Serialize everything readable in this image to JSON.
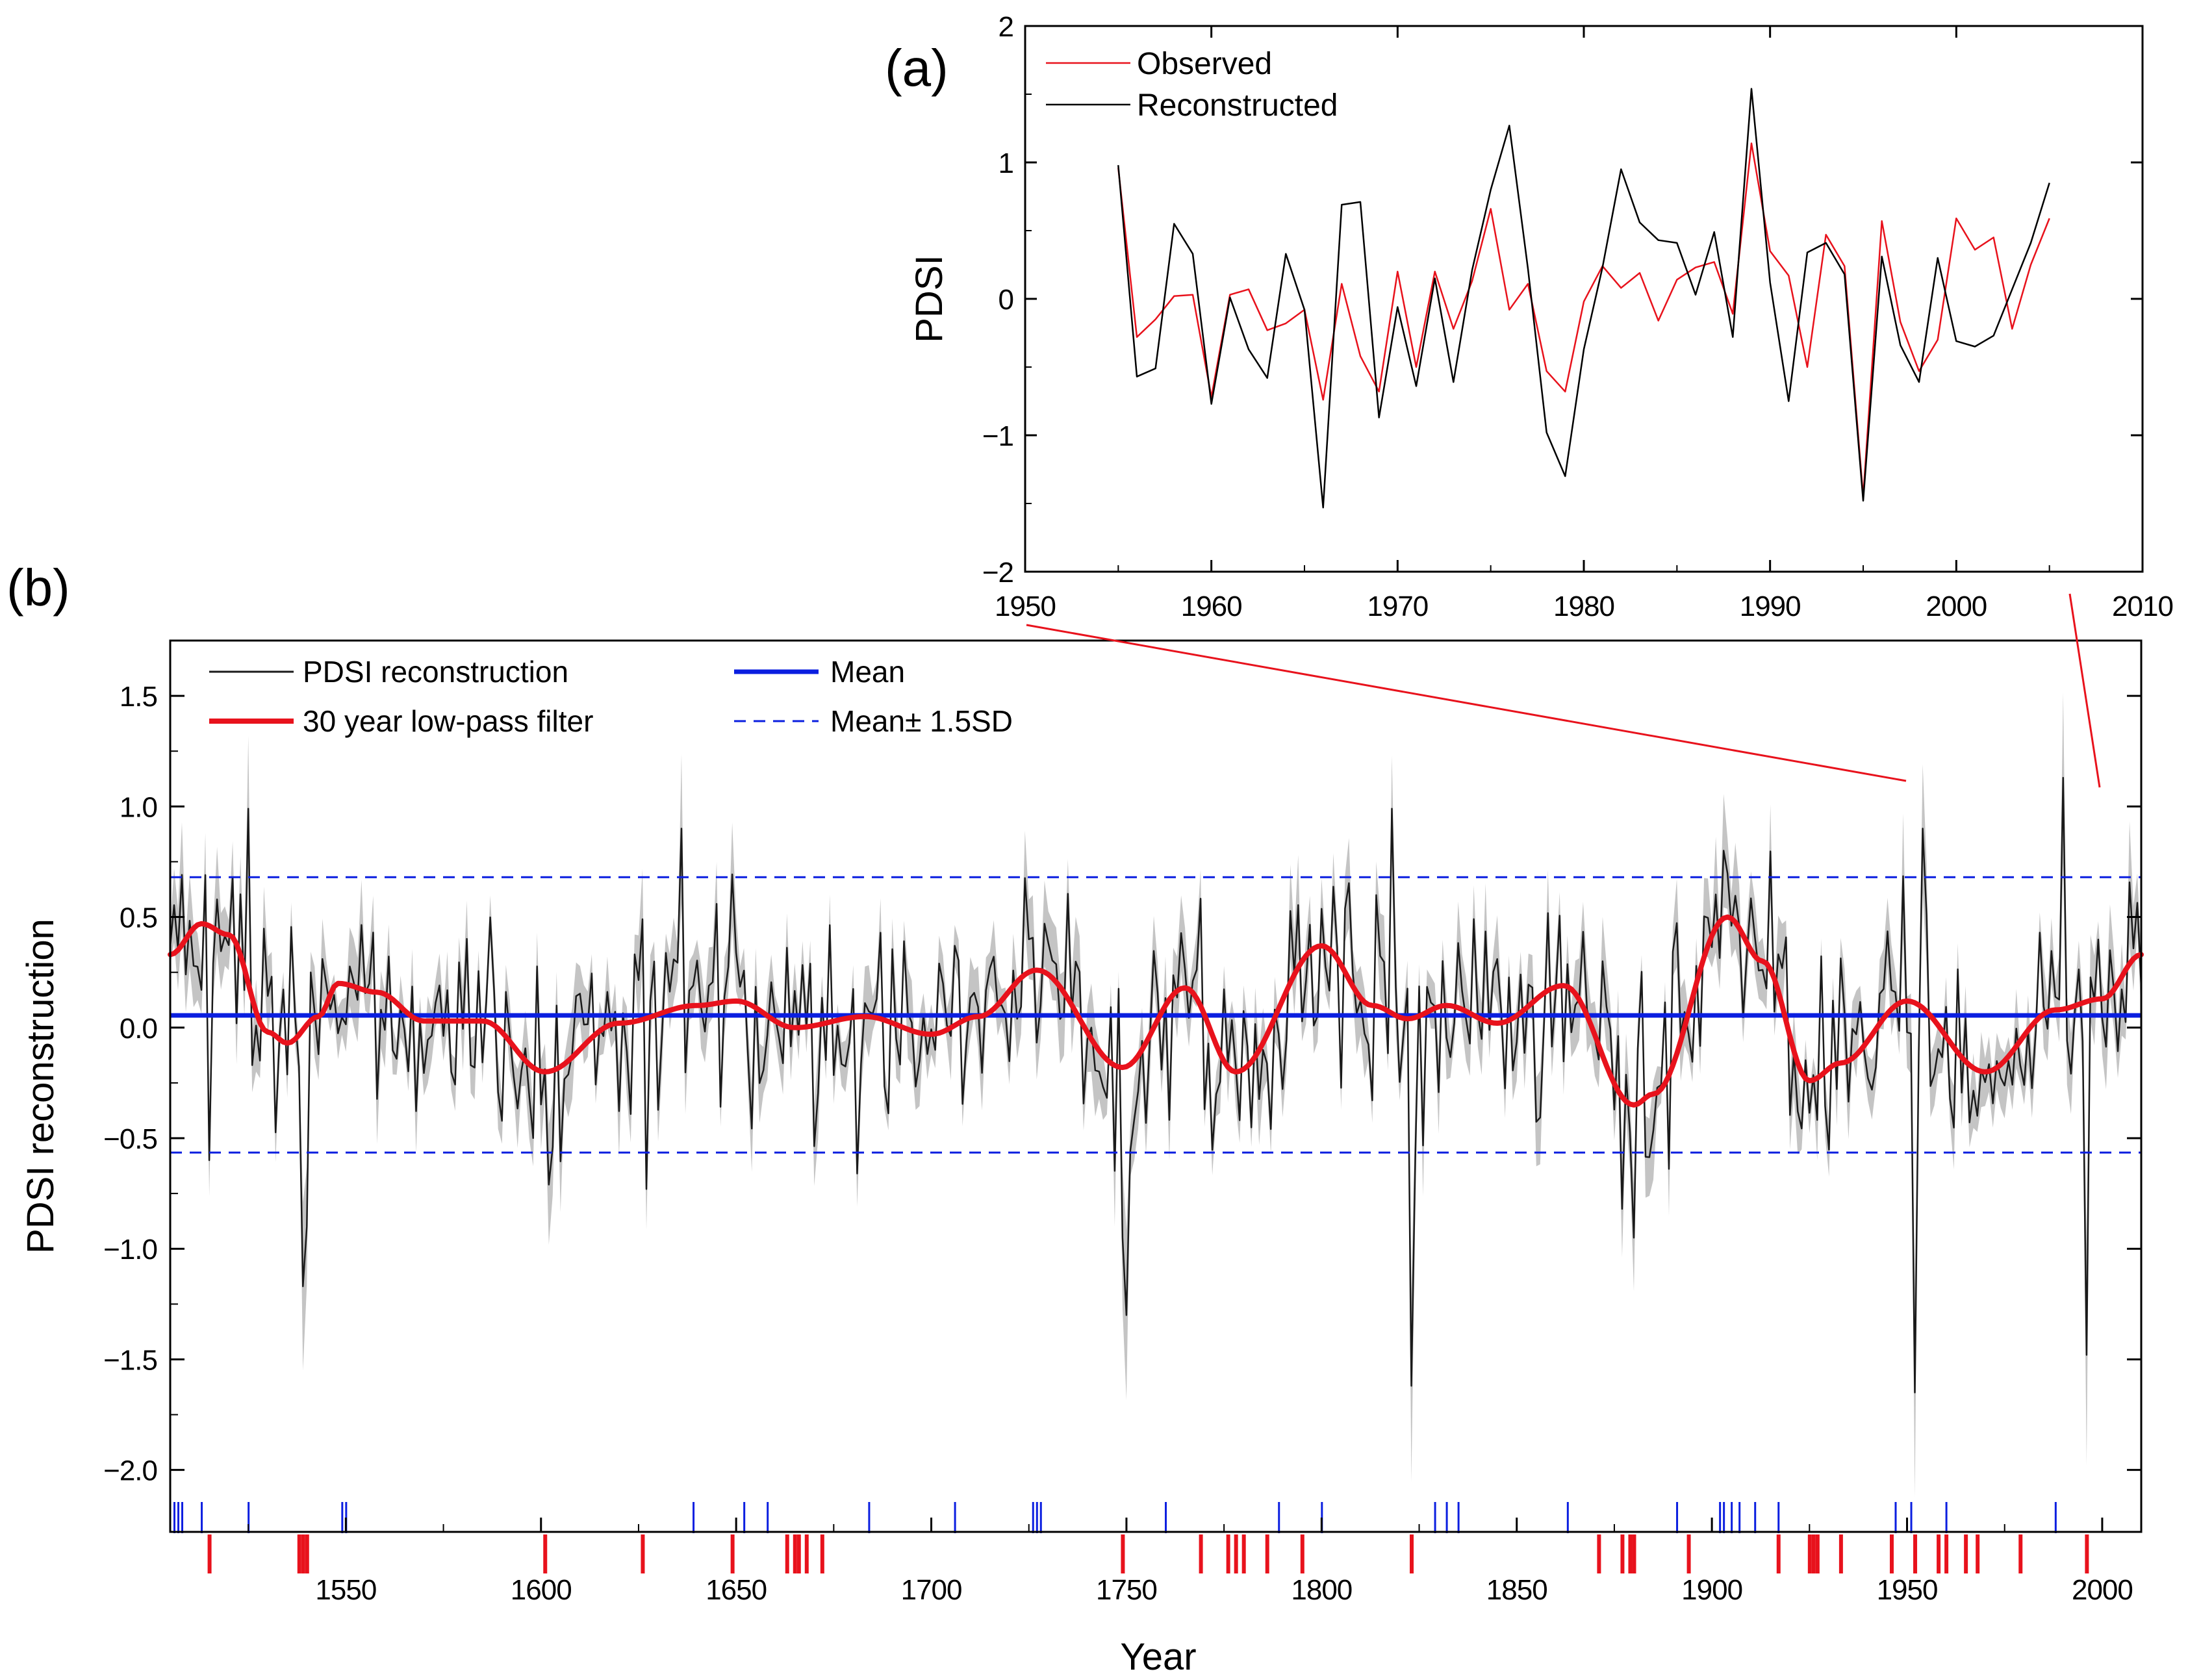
{
  "colors": {
    "reconstruction": "#1a1a1a",
    "uncertainty": "#c4c4c4",
    "lowpass": "#e8121c",
    "mean": "#0a1ee0",
    "observed": "#e8121c",
    "axis": "#000000"
  },
  "panel_a": {
    "label": "(a)",
    "ylabel": "PDSI",
    "legend": [
      {
        "label": "Observed",
        "color": "#e8121c"
      },
      {
        "label": "Reconstructed",
        "color": "#000000"
      }
    ]
  },
  "panel_b": {
    "label": "(b)",
    "ylabel": "PDSI reconstruction",
    "xlabel": "Year",
    "legend": [
      {
        "label": "PDSI reconstruction"
      },
      {
        "label": "30 year low-pass filter"
      },
      {
        "label": "Mean"
      },
      {
        "label": "Mean± 1.5SD"
      }
    ]
  },
  "chart_data": [
    {
      "type": "line",
      "panel": "a",
      "title": "",
      "xlabel": "",
      "ylabel": "PDSI",
      "xlim": [
        1950,
        2010
      ],
      "ylim": [
        -2,
        2
      ],
      "xticks": [
        1950,
        1960,
        1970,
        1980,
        1990,
        2000,
        2010
      ],
      "yticks": [
        {
          "value": 2,
          "label": "2"
        },
        {
          "value": 1,
          "label": "1"
        },
        {
          "value": 0,
          "label": "0"
        },
        {
          "value": -1,
          "label": "−1"
        },
        {
          "value": -2,
          "label": "−2"
        }
      ],
      "x": [
        1955,
        1956,
        1957,
        1958,
        1959,
        1960,
        1961,
        1962,
        1963,
        1964,
        1965,
        1966,
        1967,
        1968,
        1969,
        1970,
        1971,
        1972,
        1973,
        1974,
        1975,
        1976,
        1977,
        1978,
        1979,
        1980,
        1981,
        1982,
        1983,
        1984,
        1985,
        1986,
        1987,
        1988,
        1989,
        1990,
        1991,
        1992,
        1993,
        1994,
        1995,
        1996,
        1997,
        1998,
        1999,
        2000,
        2001,
        2002,
        2003,
        2004,
        2005
      ],
      "series": [
        {
          "name": "Observed",
          "values": [
            0.96,
            -0.28,
            -0.15,
            0.02,
            0.03,
            -0.72,
            0.03,
            0.07,
            -0.23,
            -0.18,
            -0.08,
            -0.74,
            0.11,
            -0.42,
            -0.68,
            0.2,
            -0.5,
            0.2,
            -0.22,
            0.13,
            0.66,
            -0.08,
            0.11,
            -0.53,
            -0.68,
            -0.02,
            0.24,
            0.08,
            0.19,
            -0.16,
            0.14,
            0.23,
            0.27,
            -0.11,
            1.14,
            0.35,
            0.17,
            -0.5,
            0.47,
            0.24,
            -1.45,
            0.57,
            -0.17,
            -0.53,
            -0.3,
            0.59,
            0.36,
            0.45,
            -0.22,
            0.25,
            0.59
          ]
        },
        {
          "name": "Reconstructed",
          "values": [
            0.98,
            -0.57,
            -0.51,
            0.55,
            0.33,
            -0.77,
            0.01,
            -0.37,
            -0.58,
            0.33,
            -0.08,
            -1.53,
            0.69,
            0.71,
            -0.87,
            -0.06,
            -0.64,
            0.15,
            -0.61,
            0.21,
            0.8,
            1.27,
            0.22,
            -0.98,
            -1.3,
            -0.37,
            0.23,
            0.95,
            0.56,
            0.43,
            0.41,
            0.03,
            0.49,
            -0.28,
            1.54,
            0.12,
            -0.75,
            0.34,
            0.41,
            0.18,
            -1.48,
            0.31,
            -0.34,
            -0.61,
            0.3,
            -0.31,
            -0.35,
            -0.27,
            0.07,
            0.41,
            0.85
          ]
        }
      ]
    },
    {
      "type": "line",
      "panel": "b",
      "title": "",
      "xlabel": "Year",
      "ylabel": "PDSI reconstruction",
      "xlim": [
        1505,
        2010
      ],
      "ylim": [
        -2.28,
        1.75
      ],
      "xticks": [
        1550,
        1600,
        1650,
        1700,
        1750,
        1800,
        1850,
        1900,
        1950,
        2000
      ],
      "yticks": [
        {
          "value": 1.5,
          "label": "1.5"
        },
        {
          "value": 1.0,
          "label": "1.0"
        },
        {
          "value": 0.5,
          "label": "0.5"
        },
        {
          "value": 0.0,
          "label": "0.0"
        },
        {
          "value": -0.5,
          "label": "−0.5"
        },
        {
          "value": -1.0,
          "label": "−1.0"
        },
        {
          "value": -1.5,
          "label": "−1.5"
        },
        {
          "value": -2.0,
          "label": "−2.0"
        }
      ],
      "mean": 0.055,
      "mean_plus_1_5sd": 0.68,
      "mean_minus_1_5sd": -0.565,
      "lowpass_knots": {
        "years": [
          1505,
          1513,
          1520,
          1530,
          1535,
          1543,
          1548,
          1558,
          1570,
          1585,
          1601,
          1620,
          1640,
          1650,
          1665,
          1683,
          1700,
          1712,
          1727,
          1749,
          1765,
          1778,
          1800,
          1813,
          1822,
          1832,
          1845,
          1862,
          1880,
          1885,
          1904,
          1913,
          1925,
          1933,
          1950,
          1970,
          1988,
          2000,
          2010
        ],
        "values": [
          0.33,
          0.47,
          0.42,
          -0.02,
          -0.07,
          0.05,
          0.2,
          0.16,
          0.03,
          0.03,
          -0.2,
          0.02,
          0.1,
          0.12,
          0.0,
          0.05,
          -0.03,
          0.05,
          0.26,
          -0.18,
          0.18,
          -0.2,
          0.37,
          0.1,
          0.04,
          0.1,
          0.02,
          0.19,
          -0.35,
          -0.3,
          0.5,
          0.3,
          -0.24,
          -0.16,
          0.12,
          -0.2,
          0.08,
          0.13,
          0.33
        ]
      },
      "extreme_events": {
        "wet_years": [
          1506,
          1507,
          1508,
          1513,
          1525,
          1549,
          1550,
          1639,
          1652,
          1658,
          1684,
          1706,
          1726,
          1727,
          1728,
          1760,
          1789,
          1800,
          1829,
          1832,
          1835,
          1863,
          1891,
          1902,
          1903,
          1905,
          1907,
          1911,
          1917,
          1947,
          1951,
          1960,
          1988
        ],
        "dry_years": [
          1515,
          1538,
          1539,
          1540,
          1601,
          1626,
          1649,
          1663,
          1665,
          1666,
          1668,
          1672,
          1749,
          1769,
          1776,
          1778,
          1780,
          1786,
          1795,
          1823,
          1871,
          1877,
          1879,
          1880,
          1894,
          1917,
          1925,
          1926,
          1927,
          1933,
          1946,
          1952,
          1958,
          1960,
          1965,
          1968,
          1979,
          1996
        ]
      }
    }
  ]
}
